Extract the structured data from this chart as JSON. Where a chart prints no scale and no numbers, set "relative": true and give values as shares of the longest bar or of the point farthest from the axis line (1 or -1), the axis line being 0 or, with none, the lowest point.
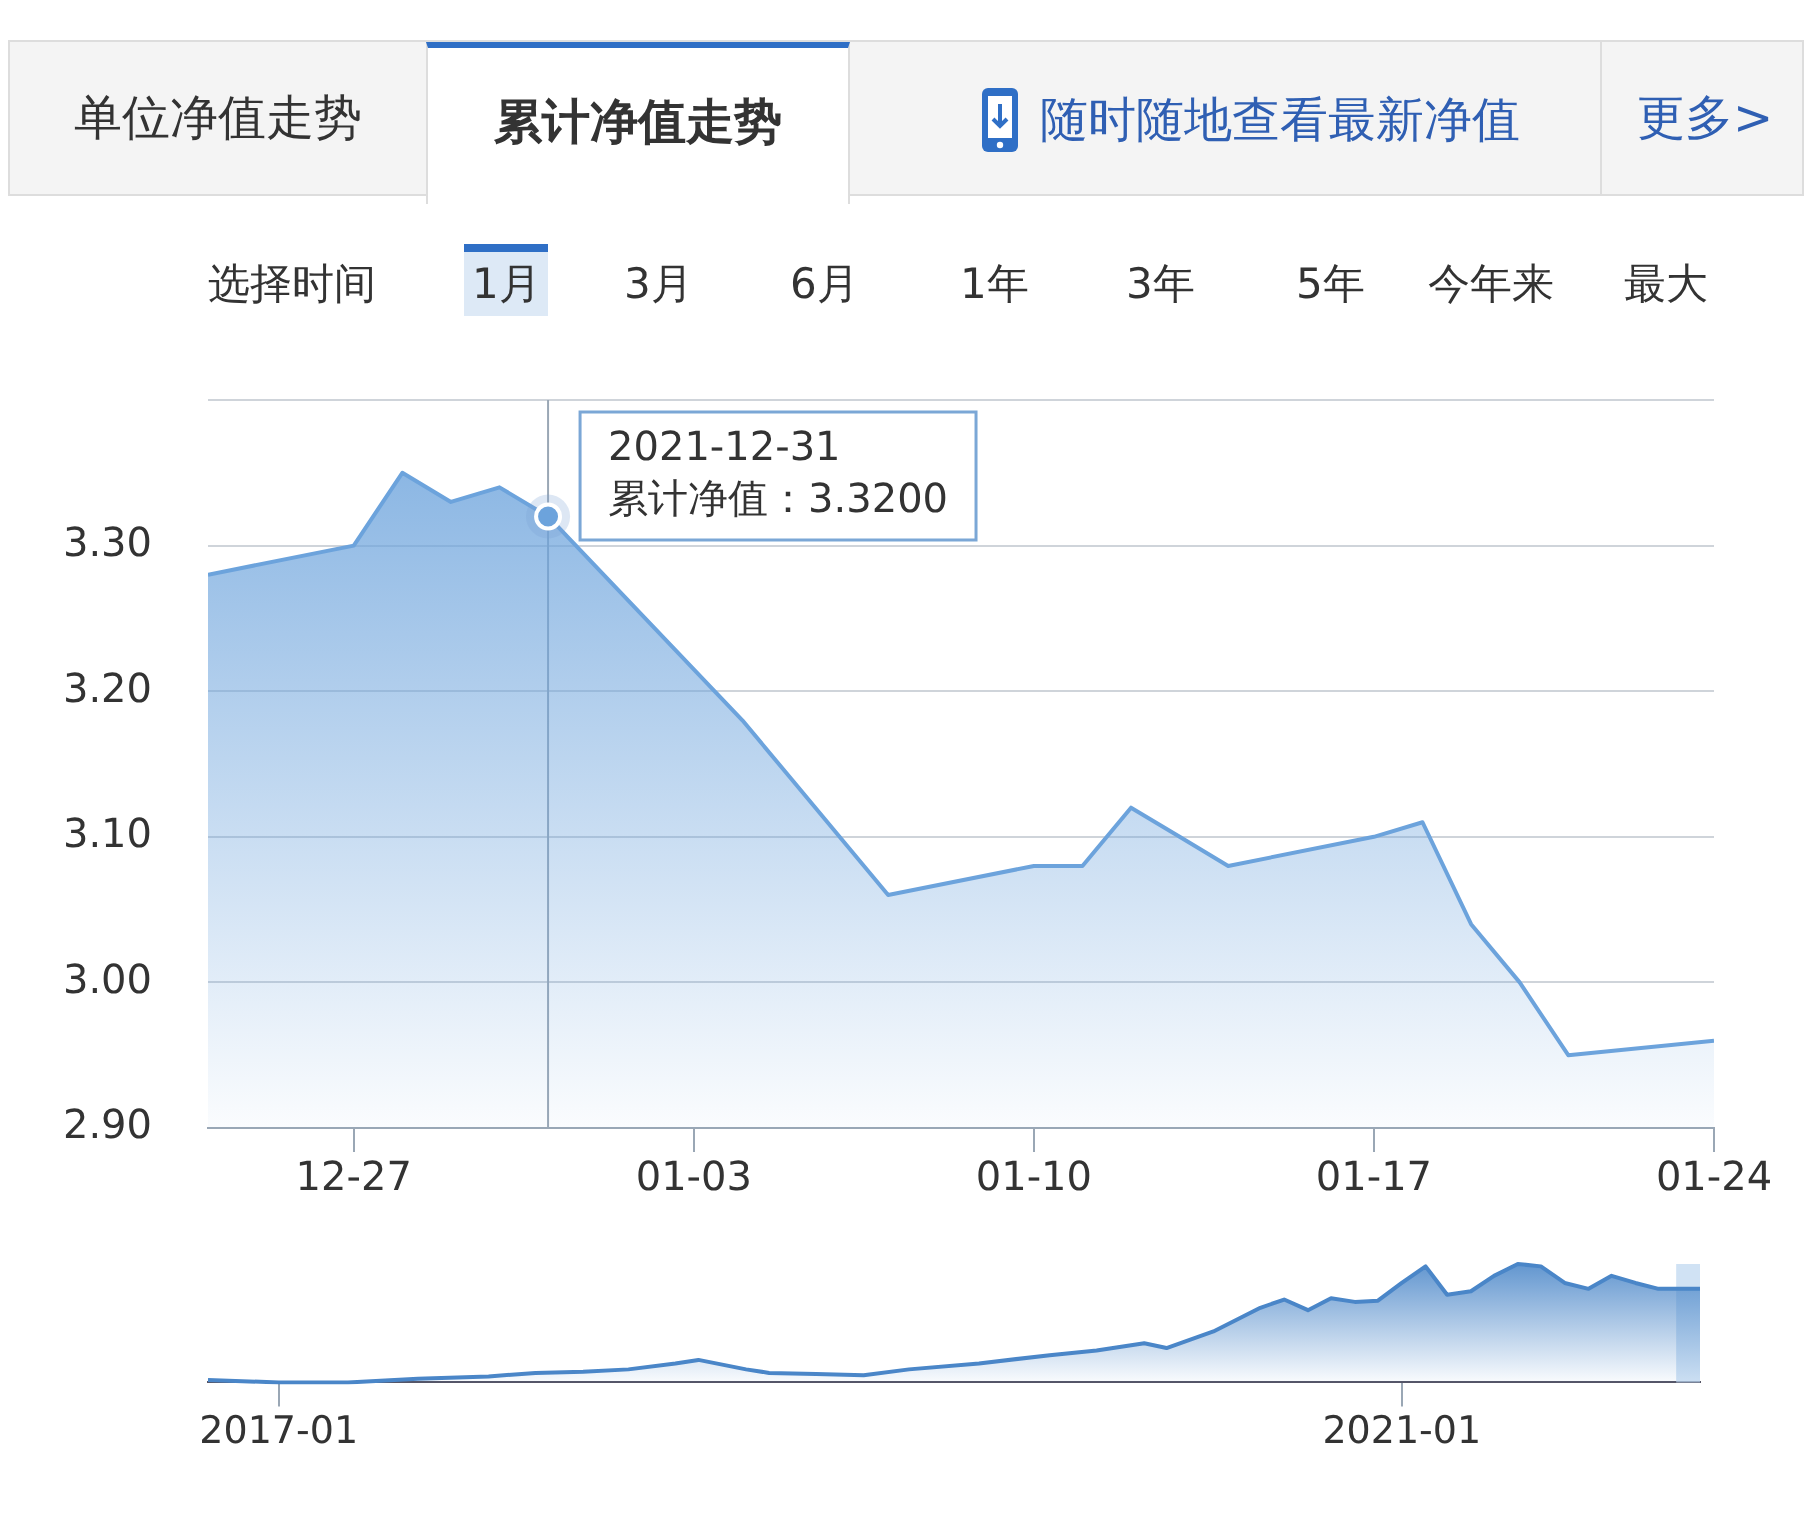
{
  "chart_data": [
    {
      "type": "other",
      "annotations": [
        "单位净值走势",
        "累计净值走势",
        "随时随地查看最新净值",
        "更多>",
        "选择时间",
        "1月",
        "3月",
        "6月",
        "1年",
        "3年",
        "5年",
        "今年来",
        "最大"
      ]
    },
    {
      "type": "area",
      "x": [
        "2021-12-24",
        "2021-12-27",
        "2021-12-28",
        "2021-12-29",
        "2021-12-30",
        "2021-12-31",
        "2022-01-04",
        "2022-01-05",
        "2022-01-06",
        "2022-01-07",
        "2022-01-10",
        "2022-01-11",
        "2022-01-12",
        "2022-01-13",
        "2022-01-14",
        "2022-01-17",
        "2022-01-18",
        "2022-01-19",
        "2022-01-20",
        "2022-01-21",
        "2022-01-24"
      ],
      "series": [
        {
          "color": "#6ca3dc",
          "values": [
            3.28,
            3.3,
            3.35,
            3.33,
            3.34,
            3.32,
            3.18,
            3.14,
            3.1,
            3.06,
            3.08,
            3.08,
            3.12,
            3.1,
            3.08,
            3.1,
            3.11,
            3.04,
            3.0,
            2.95,
            2.96
          ]
        }
      ],
      "xlim": [
        "2021-12-24",
        "2022-01-24"
      ],
      "xticks": [
        {
          "value": "2021-12-27",
          "label": "12-27"
        },
        {
          "value": "2022-01-03",
          "label": "01-03"
        },
        {
          "value": "2022-01-10",
          "label": "01-10"
        },
        {
          "value": "2022-01-17",
          "label": "01-17"
        },
        {
          "value": "2022-01-24",
          "label": "01-24"
        }
      ],
      "ylim": [
        2.9,
        3.4
      ],
      "yticks": [
        {
          "value": 2.9,
          "label": "2.90"
        },
        {
          "value": 3.0,
          "label": "3.00"
        },
        {
          "value": 3.1,
          "label": "3.10"
        },
        {
          "value": 3.2,
          "label": "3.20"
        },
        {
          "value": 3.3,
          "label": "3.30"
        },
        {
          "value": 3.4,
          "label": null
        }
      ],
      "grid": "y",
      "legend": false,
      "marker": "none",
      "ref_lines": [
        {
          "axis": "x",
          "value": "2021-12-31",
          "color": "#9aa7b5"
        }
      ],
      "annotations": [
        {
          "text": "2021-12-31\n累计净值：3.3200",
          "x": "2021-12-31",
          "y": 3.32
        }
      ]
    },
    {
      "type": "area",
      "relative": true,
      "x": [
        "2016-10",
        "2017-01",
        "2017-04",
        "2017-07",
        "2017-10",
        "2017-12",
        "2018-02",
        "2018-04",
        "2018-06",
        "2018-07",
        "2018-09",
        "2018-10",
        "2018-12",
        "2019-02",
        "2019-04",
        "2019-07",
        "2019-10",
        "2019-12",
        "2020-02",
        "2020-03",
        "2020-05",
        "2020-07",
        "2020-08",
        "2020-09",
        "2020-10",
        "2020-11",
        "2020-12",
        "2021-01",
        "2021-02",
        "2021-03",
        "2021-04",
        "2021-05",
        "2021-06",
        "2021-07",
        "2021-08",
        "2021-09",
        "2021-10",
        "2021-11",
        "2021-12",
        "2022-01-24"
      ],
      "series": [
        {
          "color": "#4a86c8",
          "values": [
            0.02,
            0,
            0,
            0.03,
            0.05,
            0.08,
            0.09,
            0.11,
            0.16,
            0.19,
            0.11,
            0.08,
            0.07,
            0.06,
            0.11,
            0.16,
            0.23,
            0.27,
            0.33,
            0.29,
            0.43,
            0.63,
            0.7,
            0.61,
            0.71,
            0.68,
            0.69,
            0.84,
            0.98,
            0.74,
            0.77,
            0.9,
            1,
            0.98,
            0.84,
            0.79,
            0.9,
            0.84,
            0.79,
            0.79
          ]
        }
      ],
      "xlim": [
        "2016-10",
        "2022-01-24"
      ],
      "xticks": [
        {
          "value": "2017-01",
          "label": "2017-01"
        },
        {
          "value": "2021-01",
          "label": "2021-01"
        }
      ],
      "tick_labels": "x",
      "grid": false,
      "legend": false,
      "marker": "none",
      "bands": [
        {
          "axis": "x",
          "from": "2021-12-24",
          "to": "2022-01-24",
          "color": "#bcd6f0"
        }
      ]
    }
  ]
}
